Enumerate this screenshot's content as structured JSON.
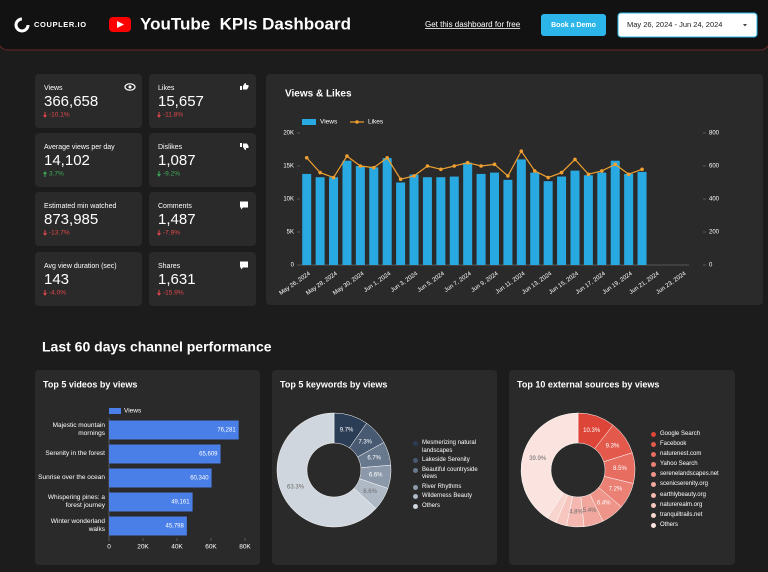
{
  "header": {
    "logo": "COUPLER.IO",
    "title": "YouTube  KPIs Dashboard",
    "link": "Get this dashboard for free",
    "button": "Book a Demo",
    "date_range": "May 26, 2024 - Jun 24, 2024"
  },
  "kpis": [
    {
      "label": "Views",
      "value": "366,658",
      "change": "-10.1%",
      "color": "#e5484d"
    },
    {
      "label": "Likes",
      "value": "15,657",
      "change": "-11.8%",
      "color": "#e5484d"
    },
    {
      "label": "Average views per day",
      "value": "14,102",
      "change": "3.7%",
      "color": "#3fae5a"
    },
    {
      "label": "Dislikes",
      "value": "1,087",
      "change": "-9.2%",
      "color": "#3fae5a"
    },
    {
      "label": "Estimated min watched",
      "value": "873,985",
      "change": "-13.7%",
      "color": "#e5484d"
    },
    {
      "label": "Comments",
      "value": "1,487",
      "change": "-7.9%",
      "color": "#e5484d"
    },
    {
      "label": "Avg view duration (sec)",
      "value": "143",
      "change": "-4.0%",
      "color": "#e5484d"
    },
    {
      "label": "Shares",
      "value": "1,631",
      "change": "-15.9%",
      "color": "#e5484d"
    }
  ],
  "section_title": "Last 60 days channel performance",
  "chart_data": [
    {
      "type": "bar",
      "title": "Views & Likes",
      "categories": [
        "May 26, 2024",
        null,
        "May 28, 2024",
        null,
        "May 30, 2024",
        null,
        "Jun 1, 2024",
        null,
        "Jun 3, 2024",
        null,
        "Jun 5, 2024",
        null,
        "Jun 7, 2024",
        null,
        "Jun 9, 2024",
        null,
        "Jun 11, 2024",
        null,
        "Jun 13, 2024",
        null,
        "Jun 15, 2024",
        null,
        "Jun 17, 2024",
        null,
        "Jun 19, 2024",
        null,
        "Jun 21, 2024",
        null,
        "Jun 23, 2024"
      ],
      "series": [
        {
          "name": "Views",
          "color": "#29a9e1",
          "values": [
            13800,
            13300,
            13300,
            15800,
            15000,
            14800,
            16200,
            12500,
            13700,
            13300,
            13300,
            13400,
            15500,
            13800,
            14000,
            12900,
            16000,
            14000,
            12700,
            13400,
            14300,
            13600,
            14000,
            15800,
            13800,
            14100,
            null,
            null,
            null
          ]
        },
        {
          "name": "Likes",
          "type": "line",
          "axis": "y2",
          "color": "#f0a030",
          "values": [
            650,
            560,
            530,
            660,
            600,
            590,
            650,
            520,
            540,
            600,
            580,
            600,
            620,
            600,
            610,
            540,
            690,
            570,
            530,
            560,
            640,
            550,
            570,
            610,
            550,
            580,
            null,
            null,
            null
          ]
        }
      ],
      "ylim": [
        0,
        20000
      ],
      "yticks": [
        0,
        {
          "value": 5000,
          "label": "5K"
        },
        {
          "value": 10000,
          "label": "10K"
        },
        {
          "value": 15000,
          "label": "15K"
        },
        {
          "value": 20000,
          "label": "20K"
        }
      ],
      "y2lim": [
        0,
        800
      ],
      "y2ticks": [
        0,
        200,
        400,
        600,
        800
      ],
      "legend": "top-left"
    },
    {
      "type": "bar",
      "orientation": "horizontal",
      "title": "Top 5 videos by views",
      "categories": [
        "Majestic mountain mornings",
        "Serenity in the forest",
        "Sunrise over the ocean",
        "Whispering pines: a forest journey",
        "Winter wonderland walks"
      ],
      "series": [
        {
          "name": "Views",
          "color": "#4a7fe8",
          "values": [
            76281,
            65609,
            60340,
            49161,
            45798
          ],
          "value_labels": [
            "76,281",
            "65,609",
            "60,340",
            "49,161",
            "45,798"
          ]
        }
      ],
      "xlim": [
        0,
        80000
      ],
      "xticks": [
        0,
        {
          "value": 20000,
          "label": "20K"
        },
        {
          "value": 40000,
          "label": "40K"
        },
        {
          "value": 60000,
          "label": "60K"
        },
        {
          "value": 80000,
          "label": "80K"
        }
      ],
      "legend": "top-left"
    },
    {
      "type": "donut",
      "title": "Top 5 keywords by views",
      "categories": [
        "Mesmerizing natural landscapes",
        "Lakeside Serenity",
        "Beautiful countryside views",
        "River Rhythms",
        "Wilderness Beauty",
        "Others"
      ],
      "values": [
        9.7,
        7.3,
        6.7,
        6.6,
        6.6,
        63.3
      ],
      "value_labels": [
        "9.7%",
        "7.3%",
        "6.7%",
        "6.6%",
        "6.6%",
        "63.3%"
      ],
      "colors": [
        "#2b3d55",
        "#475a72",
        "#68798e",
        "#8b99aa",
        "#aeb9c5",
        "#cfd6dd"
      ],
      "legend": "right"
    },
    {
      "type": "donut",
      "title": "Top 10 external sources by views",
      "categories": [
        "Google Search",
        "Facebook",
        "naturenest.com",
        "Yahoo Search",
        "serenelandscapes.net",
        "scenicserenity.org",
        "earthlybeauty.org",
        "naturerealm.org",
        "tranquiltrails.net",
        "Others"
      ],
      "values": [
        10.3,
        9.3,
        8.5,
        7.2,
        6.4,
        5.4,
        4.8,
        3.0,
        2.7,
        39.9
      ],
      "value_labels": [
        "10.3%",
        "9.3%",
        "8.5%",
        "7.2%",
        "6.4%",
        "5.4%",
        "4.8%",
        null,
        null,
        "39.9%"
      ],
      "colors": [
        "#dd4538",
        "#e35a4d",
        "#e76d61",
        "#eb8175",
        "#ee9489",
        "#f1a79d",
        "#f4b8b0",
        "#f6c6bf",
        "#f8d4ce",
        "#fbe4e0"
      ],
      "legend": "right"
    }
  ]
}
